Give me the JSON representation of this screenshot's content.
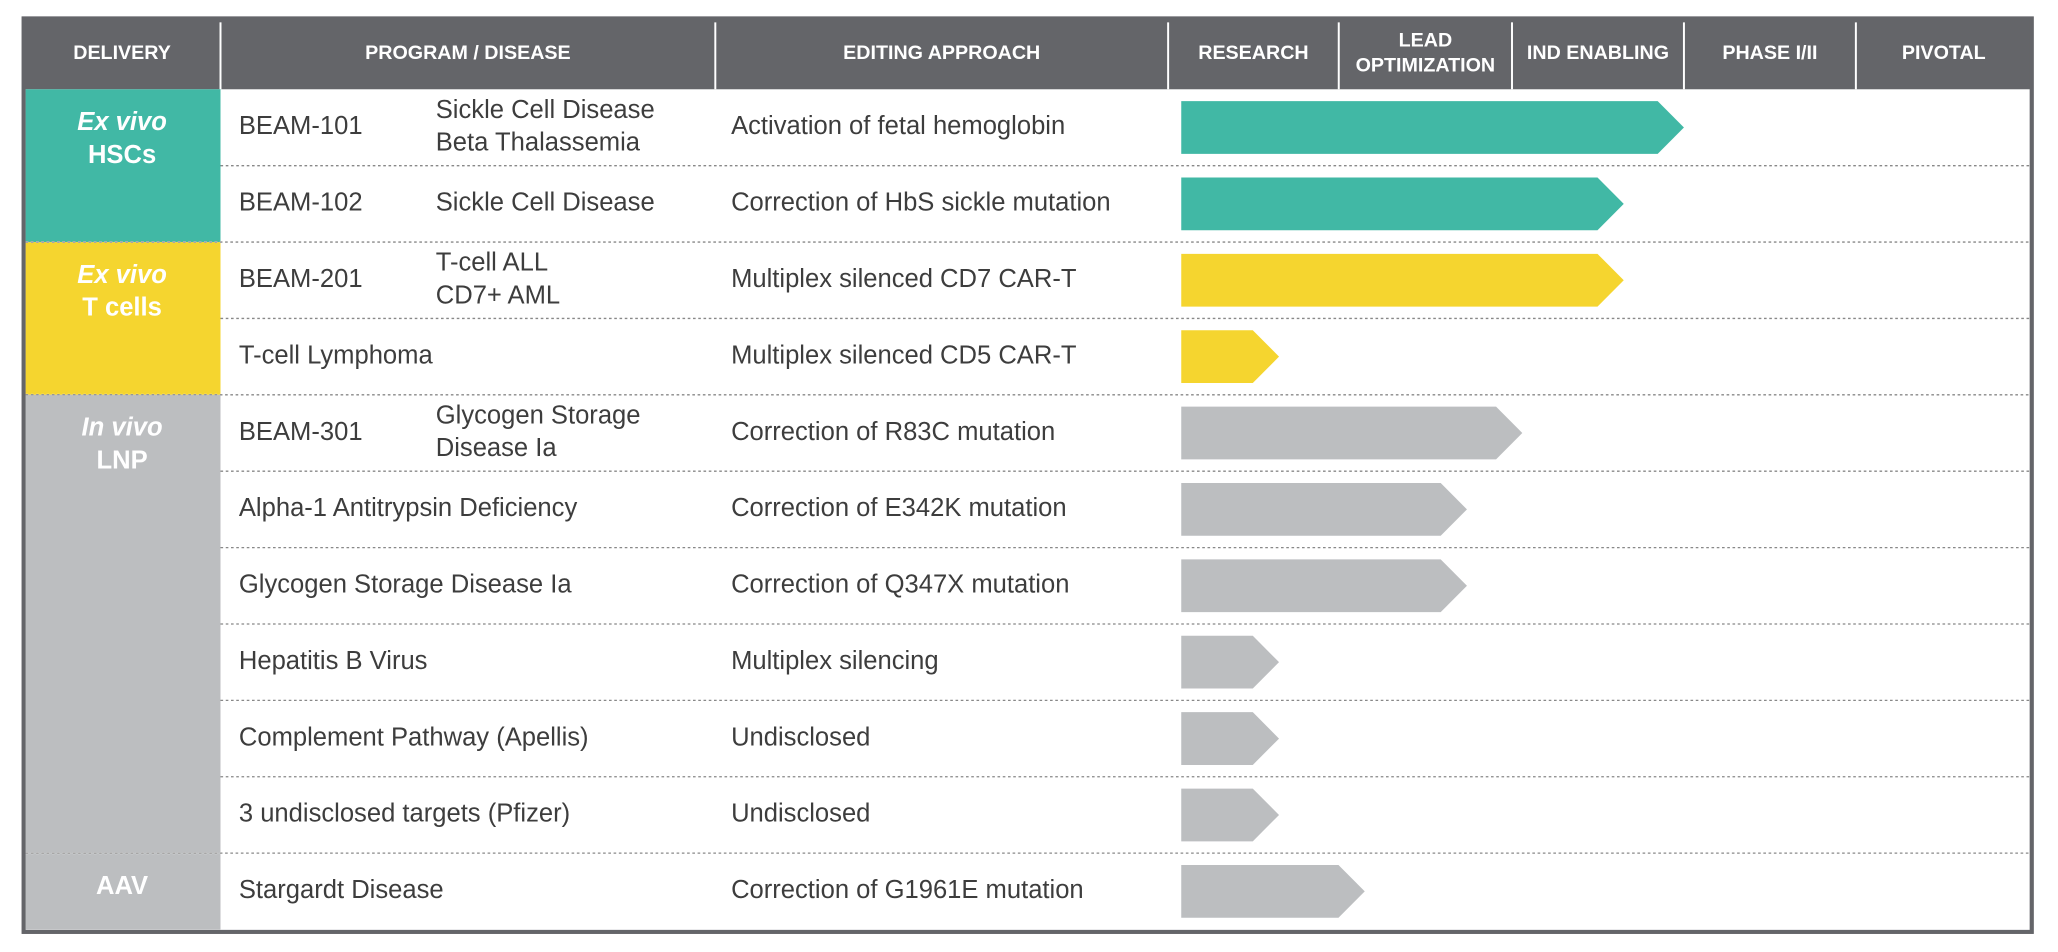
{
  "header": {
    "columns": [
      [
        "DELIVERY"
      ],
      [
        "PROGRAM / DISEASE"
      ],
      [
        "EDITING APPROACH"
      ],
      [
        "RESEARCH"
      ],
      [
        "LEAD",
        "OPTIMIZATION"
      ],
      [
        "IND ENABLING"
      ],
      [
        "PHASE I/II"
      ],
      [
        "PIVOTAL"
      ]
    ]
  },
  "groups": [
    {
      "mode": "Ex vivo",
      "target": "HSCs",
      "color": "#41b8a5",
      "programs": [
        {
          "code": "BEAM-101",
          "disease": [
            "Sickle Cell Disease",
            "Beta Thalassemia"
          ],
          "approach": "Activation of fetal hemoglobin",
          "progress": 3.0
        },
        {
          "code": "BEAM-102",
          "disease": [
            "Sickle Cell Disease"
          ],
          "approach": "Correction of HbS sickle mutation",
          "progress": 2.65
        }
      ]
    },
    {
      "mode": "Ex vivo",
      "target": "T cells",
      "color": "#f5d52f",
      "programs": [
        {
          "code": "BEAM-201",
          "disease": [
            "T-cell ALL",
            "CD7+ AML"
          ],
          "approach": "Multiplex silenced CD7 CAR-T",
          "progress": 2.65
        },
        {
          "disease": [
            "T-cell Lymphoma"
          ],
          "approach": "Multiplex silenced CD5 CAR-T",
          "progress": 0.65
        }
      ]
    },
    {
      "mode": "In vivo",
      "target": "LNP",
      "color": "#bcbec0",
      "programs": [
        {
          "code": "BEAM-301",
          "disease": [
            "Glycogen Storage",
            "Disease Ia"
          ],
          "approach": "Correction of R83C mutation",
          "progress": 2.06
        },
        {
          "disease": [
            "Alpha-1 Antitrypsin Deficiency"
          ],
          "approach": "Correction of E342K mutation",
          "progress": 1.74
        },
        {
          "disease": [
            "Glycogen Storage Disease Ia"
          ],
          "approach": "Correction of Q347X mutation",
          "progress": 1.74
        },
        {
          "disease": [
            "Hepatitis B Virus"
          ],
          "approach": "Multiplex silencing",
          "progress": 0.65
        },
        {
          "disease": [
            "Complement Pathway (Apellis)"
          ],
          "approach": "Undisclosed",
          "progress": 0.65
        },
        {
          "disease": [
            "3 undisclosed targets (Pfizer)"
          ],
          "approach": "Undisclosed",
          "progress": 0.65
        }
      ]
    },
    {
      "target": "AAV",
      "color": "#bcbec0",
      "programs": [
        {
          "disease": [
            "Stargardt Disease"
          ],
          "approach": "Correction of G1961E mutation",
          "progress": 1.15
        }
      ]
    }
  ]
}
